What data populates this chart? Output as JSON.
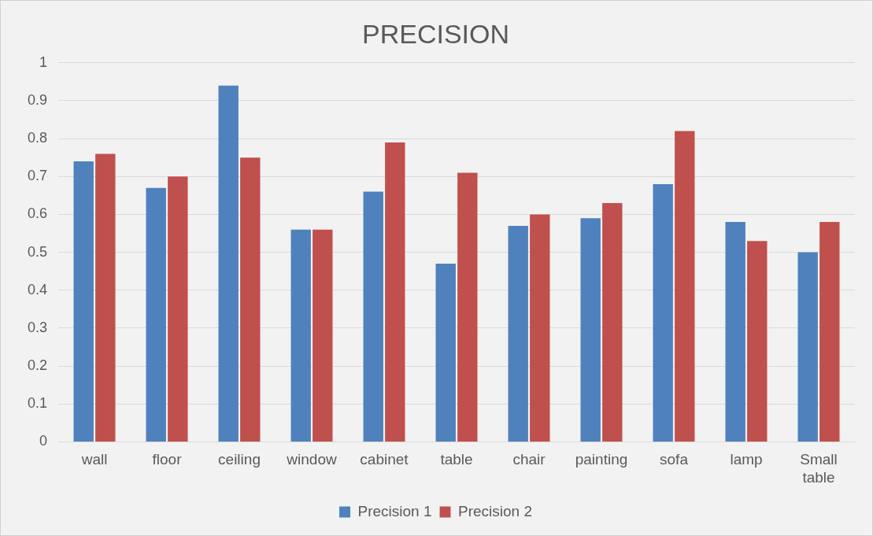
{
  "chart_data": {
    "type": "bar",
    "title": "PRECISION",
    "categories": [
      "wall",
      "floor",
      "ceiling",
      "window",
      "cabinet",
      "table",
      "chair",
      "painting",
      "sofa",
      "lamp",
      "Small table"
    ],
    "series": [
      {
        "name": "Precision 1",
        "color": "#4f81bd",
        "values": [
          0.74,
          0.67,
          0.94,
          0.56,
          0.66,
          0.47,
          0.57,
          0.59,
          0.68,
          0.58,
          0.5
        ]
      },
      {
        "name": "Precision 2",
        "color": "#c0504d",
        "values": [
          0.76,
          0.7,
          0.75,
          0.56,
          0.79,
          0.71,
          0.6,
          0.63,
          0.82,
          0.53,
          0.58
        ]
      }
    ],
    "ylim": [
      0,
      1
    ],
    "yticks": [
      0,
      0.1,
      0.2,
      0.3,
      0.4,
      0.5,
      0.6,
      0.7,
      0.8,
      0.9,
      1
    ],
    "grid": "y",
    "legend": "bottom"
  }
}
